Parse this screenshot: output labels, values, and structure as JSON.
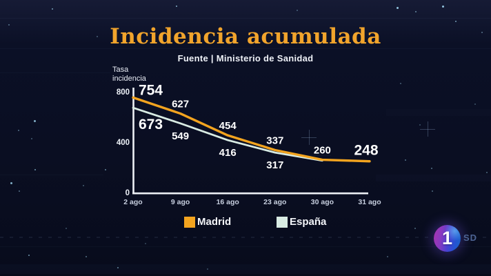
{
  "header": {
    "title": "Incidencia acumulada",
    "source": "Fuente | Ministerio de Sanidad"
  },
  "chart_data": {
    "type": "line",
    "title": "Incidencia acumulada",
    "subtitle": "Fuente | Ministerio de Sanidad",
    "categories": [
      "2 ago",
      "9 ago",
      "16 ago",
      "23 ago",
      "30 ago",
      "31 ago"
    ],
    "series": [
      {
        "name": "Madrid",
        "color": "#f3a41f",
        "values": [
          754,
          627,
          454,
          337,
          260,
          248
        ]
      },
      {
        "name": "España",
        "color": "#d8ebe3",
        "values": [
          673,
          549,
          416,
          317,
          260,
          null
        ]
      }
    ],
    "xlabel": "",
    "ylabel": "Tasa incidencia",
    "ylabel_lines": [
      "Tasa",
      "incidencia"
    ],
    "y_ticks": [
      800,
      400,
      0
    ],
    "ylim": [
      0,
      800
    ],
    "grid": false,
    "legend_position": "bottom"
  },
  "legend": {
    "items": [
      {
        "label": "Madrid",
        "color": "#f3a41f"
      },
      {
        "label": "España",
        "color": "#d8ebe3"
      }
    ]
  },
  "badge": {
    "channel": "1",
    "quality": "SD"
  }
}
